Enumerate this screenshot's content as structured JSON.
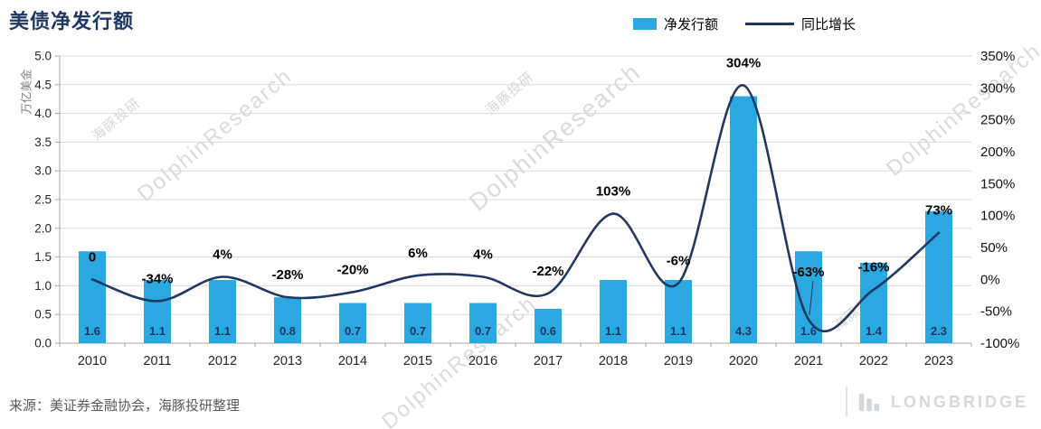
{
  "title": "美债净发行额",
  "legend": {
    "bars": "净发行额",
    "line": "同比增长"
  },
  "source_note": "来源：美证券金融协会，海豚投研整理",
  "brand": {
    "name": "LONGBRIDGE"
  },
  "watermarks": {
    "en": "DolphinResearch",
    "zh": "海豚投研"
  },
  "colors": {
    "bar": "#29a9e0",
    "line": "#1f3864",
    "title": "#1f3864",
    "bar_label": "#1f3864",
    "pct_label": "#000000",
    "grid": "#d9d9d9",
    "axis": "#a6a6a6",
    "tick_text": "#262626",
    "watermark": "#dadada",
    "logo": "#d3d6db"
  },
  "chart_data": {
    "type": "combo",
    "categories": [
      "2010",
      "2011",
      "2012",
      "2013",
      "2014",
      "2015",
      "2016",
      "2017",
      "2018",
      "2019",
      "2020",
      "2021",
      "2022",
      "2023"
    ],
    "series": [
      {
        "name": "净发行额",
        "type": "bar",
        "axis": "left",
        "values": [
          1.6,
          1.1,
          1.1,
          0.8,
          0.7,
          0.7,
          0.7,
          0.6,
          1.1,
          1.1,
          4.3,
          1.6,
          1.4,
          2.3
        ],
        "value_labels": [
          "1.6",
          "1.1",
          "1.1",
          "0.8",
          "0.7",
          "0.7",
          "0.7",
          "0.6",
          "1.1",
          "1.1",
          "4.3",
          "1.6",
          "1.4",
          "2.3"
        ]
      },
      {
        "name": "同比增长",
        "type": "line",
        "axis": "right",
        "values": [
          0,
          -34,
          4,
          -28,
          -20,
          6,
          4,
          -22,
          103,
          -6,
          304,
          -63,
          -16,
          73
        ],
        "value_labels": [
          "0",
          "-34%",
          "4%",
          "-28%",
          "-20%",
          "6%",
          "4%",
          "-22%",
          "103%",
          "-6%",
          "304%",
          "-63%",
          "-16%",
          "73%"
        ]
      }
    ],
    "left_axis": {
      "title": "万亿美金",
      "min": 0,
      "max": 5,
      "step": 0.5,
      "tick_labels": [
        "5.0",
        "4.5",
        "4.0",
        "3.5",
        "3.0",
        "2.5",
        "2.0",
        "1.5",
        "1.0",
        "0.5",
        "0.0"
      ]
    },
    "right_axis": {
      "min": -100,
      "max": 350,
      "step": 50,
      "tick_labels": [
        "350%",
        "300%",
        "250%",
        "200%",
        "150%",
        "100%",
        "50%",
        "0%",
        "-50%",
        "-100%"
      ]
    },
    "grid": true,
    "legend_position": "top-right"
  }
}
